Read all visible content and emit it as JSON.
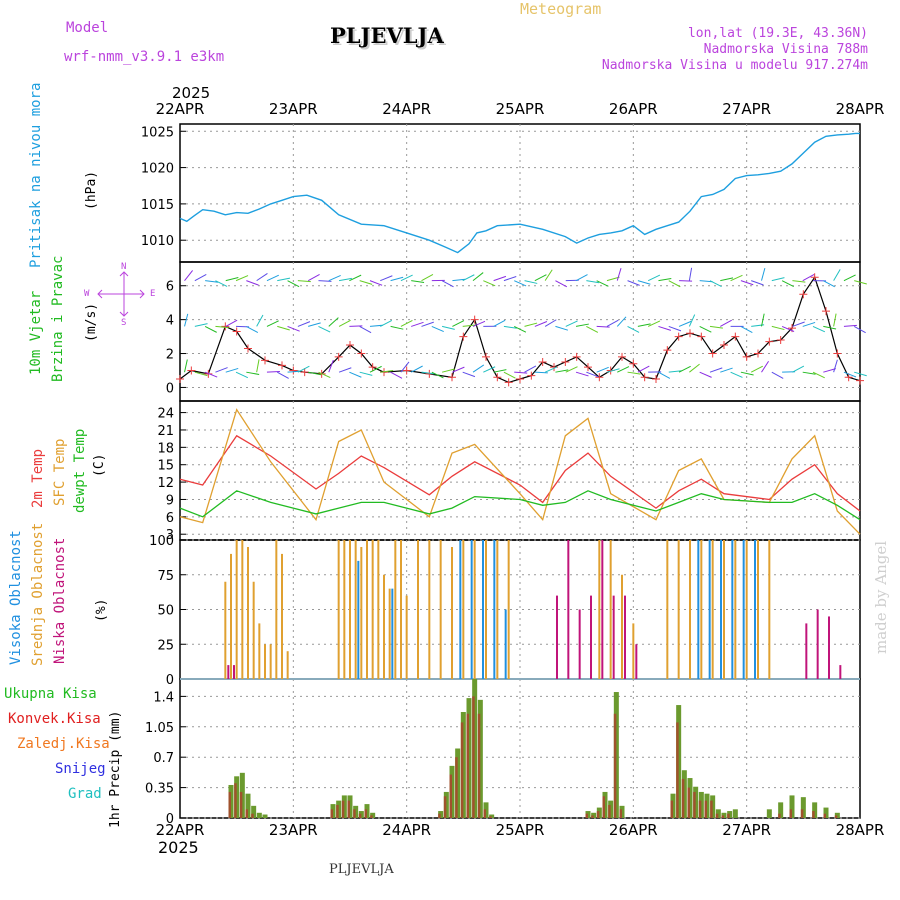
{
  "header": {
    "model_label": "Model",
    "model_name": "wrf-nmm_v3.9.1 e3km",
    "station": "PLJEVLJA",
    "meteogram_label": "Meteogram",
    "lonlat": "lon,lat (19.3E, 43.36N)",
    "elevation": "Nadmorska Visina 788m",
    "model_elevation": "Nadmorska Visina u modelu 917.274m",
    "year_top": "2025",
    "year_bottom": "2025",
    "footer_station": "PLJEVLJA",
    "credit": "made by Angel"
  },
  "colors": {
    "pressure": "#1e9fdf",
    "temp2m": "#ea3c3c",
    "sfc": "#e0a030",
    "dewpt": "#22bb22",
    "high_cloud": "#2090e0",
    "mid_cloud": "#e0a030",
    "low_cloud": "#c0147a",
    "total_precip": "#22bb22",
    "conv_precip": "#e02020",
    "freezing": "#f07820",
    "snow": "#3030e0",
    "hail": "#20c0c0",
    "label_purple": "#bb44dd",
    "label_gold": "#e6c46a"
  },
  "panels": {
    "pressure": {
      "label": "Pritisak na nivou mora",
      "unit": "(hPa)"
    },
    "wind": {
      "label1": "10m Vjetar",
      "label2": "Brzina i Pravac",
      "unit": "(m/s)",
      "compass_w": "W",
      "compass_e": "E",
      "compass_n": "N",
      "compass_s": "S"
    },
    "temperature": {
      "label1": "2m Temp",
      "label2": "SFC Temp",
      "label3": "dewpt Temp",
      "unit": "(C)"
    },
    "clouds": {
      "label1": "Visoka Oblacnost",
      "label2": "Srednja Oblacnost",
      "label3": "Niska Oblacnost",
      "unit": "(%)"
    },
    "precip": {
      "legend": [
        "Ukupna Kisa",
        "Konvek.Kisa",
        "Zaledj.Kisa",
        "Snijeg",
        "Grad"
      ],
      "unit": "1hr Precip (mm)"
    }
  },
  "chart_data": [
    {
      "type": "line",
      "name": "pressure",
      "ylim": [
        1007,
        1026
      ],
      "yticks": [
        1010,
        1015,
        1020,
        1025
      ],
      "x_labels": [
        "22APR",
        "23APR",
        "24APR",
        "25APR",
        "26APR",
        "27APR",
        "28APR"
      ],
      "x": [
        0,
        0.06,
        0.12,
        0.2,
        0.3,
        0.4,
        0.5,
        0.6,
        0.7,
        0.8,
        0.9,
        1.0,
        1.12,
        1.25,
        1.4,
        1.6,
        1.8,
        2.0,
        2.2,
        2.35,
        2.45,
        2.55,
        2.62,
        2.7,
        2.8,
        3.0,
        3.2,
        3.4,
        3.5,
        3.6,
        3.7,
        3.8,
        3.9,
        4.0,
        4.1,
        4.2,
        4.3,
        4.4,
        4.5,
        4.6,
        4.7,
        4.8,
        4.9,
        5.0,
        5.1,
        5.2,
        5.3,
        5.4,
        5.5,
        5.6,
        5.7,
        5.8,
        5.9,
        5.96,
        6.0
      ],
      "values": [
        1013,
        1012.6,
        1013.3,
        1014.2,
        1014.0,
        1013.5,
        1013.8,
        1013.7,
        1014.3,
        1015.0,
        1015.5,
        1016.0,
        1016.2,
        1015.5,
        1013.5,
        1012.2,
        1012.0,
        1011.0,
        1010.0,
        1009.0,
        1008.3,
        1009.5,
        1011.0,
        1011.3,
        1012.0,
        1012.2,
        1011.5,
        1010.5,
        1009.6,
        1010.3,
        1010.8,
        1011.0,
        1011.3,
        1012.0,
        1010.8,
        1011.5,
        1012.0,
        1012.5,
        1014.0,
        1016.0,
        1016.3,
        1017.0,
        1018.5,
        1018.9,
        1019.0,
        1019.2,
        1019.5,
        1020.5,
        1022.0,
        1023.5,
        1024.3,
        1024.5,
        1024.6,
        1024.7,
        1024.7
      ]
    },
    {
      "type": "line",
      "name": "wind_speed",
      "ylim": [
        -0.8,
        7.4
      ],
      "yticks": [
        0,
        2,
        4,
        6
      ],
      "x": [
        0,
        0.1,
        0.25,
        0.4,
        0.5,
        0.6,
        0.75,
        0.9,
        1.0,
        1.1,
        1.25,
        1.4,
        1.5,
        1.6,
        1.7,
        1.8,
        2.0,
        2.2,
        2.4,
        2.5,
        2.6,
        2.7,
        2.8,
        2.9,
        3.0,
        3.1,
        3.2,
        3.3,
        3.4,
        3.5,
        3.6,
        3.7,
        3.8,
        3.9,
        4.0,
        4.1,
        4.2,
        4.3,
        4.4,
        4.5,
        4.6,
        4.7,
        4.8,
        4.9,
        5.0,
        5.1,
        5.2,
        5.3,
        5.4,
        5.5,
        5.6,
        5.7,
        5.8,
        5.9,
        6.0
      ],
      "values": [
        0.5,
        1.0,
        0.8,
        3.6,
        3.3,
        2.3,
        1.6,
        1.3,
        1.0,
        0.9,
        0.8,
        1.8,
        2.5,
        2.0,
        1.2,
        0.9,
        1.0,
        0.8,
        0.6,
        3.0,
        4.0,
        1.8,
        0.6,
        0.3,
        0.5,
        0.7,
        1.5,
        1.2,
        1.5,
        1.8,
        1.2,
        0.6,
        1.0,
        1.8,
        1.4,
        0.6,
        0.5,
        2.2,
        3.0,
        3.2,
        3.0,
        2.0,
        2.5,
        3.0,
        1.8,
        2.0,
        2.7,
        2.8,
        3.5,
        5.5,
        6.5,
        4.5,
        2.0,
        0.6,
        0.4
      ]
    },
    {
      "type": "line",
      "name": "temperature",
      "ylim": [
        2,
        26
      ],
      "yticks": [
        3,
        6,
        9,
        12,
        15,
        18,
        21,
        24
      ],
      "x": [
        0,
        0.2,
        0.5,
        0.8,
        1.2,
        1.4,
        1.6,
        1.8,
        2.2,
        2.4,
        2.6,
        3.0,
        3.2,
        3.4,
        3.6,
        3.8,
        4.2,
        4.4,
        4.6,
        4.8,
        5.2,
        5.4,
        5.6,
        5.8,
        6.0
      ],
      "series": [
        {
          "name": "2m Temp",
          "values": [
            12.5,
            11.5,
            20.0,
            16.5,
            10.8,
            13.5,
            16.5,
            14.5,
            9.8,
            13.0,
            15.5,
            11.5,
            8.5,
            14.0,
            17.0,
            13.0,
            7.5,
            10.5,
            12.5,
            10.0,
            9.0,
            12.5,
            15.0,
            10.0,
            7.0
          ]
        },
        {
          "name": "SFC Temp",
          "values": [
            6.0,
            5.0,
            24.5,
            15.5,
            5.5,
            19.0,
            21.0,
            12.0,
            6.0,
            17.0,
            18.5,
            10.0,
            5.5,
            20.0,
            23.0,
            10.0,
            5.5,
            14.0,
            16.0,
            9.0,
            8.5,
            16.0,
            20.0,
            7.0,
            3.0
          ]
        },
        {
          "name": "dewpt Temp",
          "values": [
            7.5,
            6.0,
            10.5,
            8.5,
            6.5,
            7.5,
            8.5,
            8.5,
            6.5,
            7.5,
            9.5,
            9.0,
            8.0,
            8.5,
            10.5,
            9.0,
            7.0,
            8.5,
            10.0,
            9.0,
            8.5,
            8.5,
            10.0,
            8.0,
            5.5
          ]
        }
      ]
    },
    {
      "type": "bar",
      "name": "cloud_cover",
      "ylim": [
        0,
        100
      ],
      "yticks": [
        0,
        25,
        50,
        75,
        100
      ],
      "x": [
        0.4,
        0.45,
        0.5,
        0.55,
        0.6,
        0.65,
        0.7,
        0.75,
        0.8,
        0.85,
        0.9,
        0.95,
        1.0,
        1.05,
        1.1,
        1.15,
        1.4,
        1.45,
        1.5,
        1.55,
        1.6,
        1.65,
        1.7,
        1.75,
        1.8,
        1.85,
        1.9,
        1.95,
        2.0,
        2.1,
        2.2,
        2.3,
        2.4,
        2.5,
        2.6,
        2.7,
        2.8,
        2.9,
        3.3,
        3.4,
        3.5,
        3.6,
        3.7,
        3.8,
        3.9,
        4.0,
        4.3,
        4.4,
        4.5,
        4.6,
        4.7,
        4.8,
        4.9,
        5.0,
        5.1,
        5.2,
        5.5,
        5.6,
        5.7,
        5.8
      ],
      "series": [
        {
          "name": "Visoka Oblacnost",
          "values": [
            0,
            0,
            0,
            0,
            0,
            0,
            0,
            0,
            0,
            0,
            0,
            0,
            0,
            0,
            0,
            0,
            0,
            0,
            0,
            0,
            85,
            0,
            0,
            0,
            0,
            0,
            65,
            0,
            0,
            0,
            0,
            0,
            0,
            100,
            100,
            100,
            100,
            50,
            0,
            0,
            0,
            0,
            0,
            0,
            0,
            0,
            0,
            0,
            0,
            100,
            100,
            100,
            100,
            100,
            100,
            0,
            0,
            0,
            0,
            0
          ]
        },
        {
          "name": "Srednja Oblacnost",
          "values": [
            70,
            90,
            100,
            100,
            95,
            70,
            40,
            25,
            25,
            100,
            90,
            20,
            0,
            0,
            0,
            0,
            100,
            100,
            100,
            100,
            95,
            100,
            100,
            100,
            75,
            65,
            100,
            100,
            60,
            100,
            100,
            100,
            95,
            100,
            100,
            100,
            100,
            100,
            0,
            0,
            0,
            0,
            100,
            100,
            75,
            40,
            100,
            100,
            100,
            100,
            100,
            100,
            100,
            100,
            100,
            100,
            0,
            0,
            0,
            0
          ]
        },
        {
          "name": "Niska Oblacnost",
          "values": [
            10,
            10,
            0,
            0,
            0,
            0,
            0,
            0,
            0,
            0,
            0,
            0,
            0,
            0,
            0,
            0,
            0,
            0,
            0,
            0,
            0,
            0,
            0,
            0,
            0,
            0,
            0,
            0,
            0,
            0,
            0,
            0,
            0,
            0,
            0,
            0,
            0,
            0,
            60,
            100,
            50,
            60,
            100,
            60,
            60,
            25,
            0,
            0,
            0,
            0,
            0,
            0,
            0,
            0,
            0,
            0,
            40,
            50,
            45,
            10
          ]
        }
      ]
    },
    {
      "type": "bar",
      "name": "precipitation",
      "ylim": [
        0,
        1.6
      ],
      "yticks": [
        0,
        0.35,
        0.7,
        1.05,
        1.4
      ],
      "ytick_labels": [
        "0",
        "0.35",
        "0.7",
        "1.05",
        "1.4"
      ],
      "x": [
        0.45,
        0.5,
        0.55,
        0.6,
        0.65,
        0.7,
        0.75,
        1.35,
        1.4,
        1.45,
        1.5,
        1.55,
        1.6,
        1.65,
        1.7,
        2.3,
        2.35,
        2.4,
        2.45,
        2.5,
        2.55,
        2.6,
        2.65,
        2.7,
        2.75,
        3.6,
        3.65,
        3.7,
        3.75,
        3.8,
        3.85,
        3.9,
        4.35,
        4.4,
        4.45,
        4.5,
        4.55,
        4.6,
        4.65,
        4.7,
        4.75,
        4.8,
        4.85,
        4.9,
        5.2,
        5.3,
        5.4,
        5.5,
        5.6,
        5.7,
        5.8
      ],
      "series": [
        {
          "name": "Ukupna Kisa",
          "values": [
            0.38,
            0.48,
            0.52,
            0.28,
            0.14,
            0.06,
            0.04,
            0.16,
            0.2,
            0.26,
            0.26,
            0.14,
            0.08,
            0.16,
            0.06,
            0.08,
            0.3,
            0.6,
            0.8,
            1.22,
            1.38,
            1.6,
            1.36,
            0.18,
            0.04,
            0.08,
            0.06,
            0.12,
            0.3,
            0.2,
            1.45,
            0.14,
            0.28,
            1.3,
            0.55,
            0.46,
            0.36,
            0.3,
            0.28,
            0.26,
            0.1,
            0.06,
            0.08,
            0.1,
            0.1,
            0.18,
            0.26,
            0.24,
            0.18,
            0.12,
            0.06
          ]
        },
        {
          "name": "Konvek.Kisa",
          "values": [
            0.3,
            0.4,
            0.3,
            0.1,
            0.05,
            0,
            0,
            0.1,
            0.15,
            0.2,
            0.2,
            0.1,
            0.05,
            0.1,
            0.03,
            0.05,
            0.25,
            0.5,
            0.7,
            1.1,
            1.2,
            1.4,
            1.2,
            0.1,
            0.02,
            0.05,
            0.03,
            0.08,
            0.25,
            0.15,
            1.2,
            0.1,
            0.2,
            1.1,
            0.45,
            0.35,
            0.3,
            0.2,
            0.2,
            0.2,
            0.05,
            0.03,
            0.05,
            0,
            0,
            0.05,
            0.1,
            0.1,
            0.08,
            0.05,
            0.03
          ]
        }
      ]
    }
  ]
}
